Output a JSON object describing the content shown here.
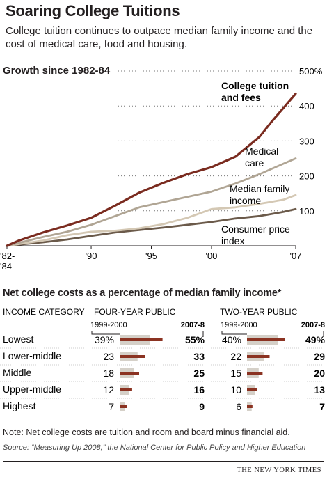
{
  "title": "Soaring College Tuitions",
  "subtitle": "College tuition continues to outpace median family income and the cost of medical care, food and housing.",
  "note": "Note: Net college costs are tuition and room and board minus financial aid.",
  "source": "Source: “Measuring Up 2008,” the National Center for Public Policy and Higher Education",
  "credit": "THE NEW YORK TIMES",
  "colors": {
    "tuition": "#7a2b1f",
    "medical": "#b0a594",
    "income": "#d4c8b4",
    "cpi": "#6b5a4a",
    "bar_light": "#d5d0c8",
    "bar_dark": "#8b3322"
  },
  "chart_data": [
    {
      "type": "line",
      "title": "Growth since 1982-84",
      "x_tick_labels": [
        "'82-\n'84",
        "'90",
        "'95",
        "'00",
        "'07"
      ],
      "x_ticks": [
        1983,
        1990,
        1995,
        2000,
        2007
      ],
      "xlim": [
        1983,
        2007
      ],
      "ylim": [
        0,
        500
      ],
      "y_ticks": [
        100,
        200,
        300,
        400,
        500
      ],
      "y_tick_labels": [
        "100",
        "200",
        "300",
        "400",
        "500%"
      ],
      "grid": "dotted horizontal",
      "series": [
        {
          "name": "College tuition and fees",
          "color_key": "tuition",
          "x": [
            1983,
            1984,
            1986,
            1988,
            1990,
            1992,
            1994,
            1996,
            1998,
            2000,
            2002,
            2004,
            2005,
            2006,
            2007
          ],
          "y": [
            0,
            15,
            38,
            58,
            80,
            115,
            152,
            180,
            205,
            225,
            255,
            312,
            355,
            395,
            435
          ]
        },
        {
          "name": "Medical care",
          "color_key": "medical",
          "x": [
            1983,
            1986,
            1988,
            1990,
            1992,
            1994,
            1996,
            1998,
            2000,
            2002,
            2004,
            2006,
            2007
          ],
          "y": [
            0,
            25,
            40,
            60,
            85,
            110,
            125,
            140,
            155,
            178,
            205,
            235,
            250
          ]
        },
        {
          "name": "Median family income",
          "color_key": "income",
          "x": [
            1983,
            1986,
            1988,
            1990,
            1992,
            1994,
            1996,
            1998,
            2000,
            2002,
            2004,
            2006,
            2007
          ],
          "y": [
            0,
            15,
            30,
            40,
            43,
            50,
            62,
            80,
            105,
            110,
            120,
            132,
            145
          ]
        },
        {
          "name": "Consumer price index",
          "color_key": "cpi",
          "x": [
            1983,
            1986,
            1988,
            1990,
            1992,
            1994,
            1996,
            1998,
            2000,
            2002,
            2004,
            2006,
            2007
          ],
          "y": [
            0,
            10,
            18,
            28,
            38,
            45,
            52,
            60,
            68,
            78,
            85,
            97,
            105
          ]
        }
      ],
      "annotations": [
        {
          "series": 0,
          "text_lines": [
            "College tuition",
            "and fees"
          ],
          "bold": true
        },
        {
          "series": 1,
          "text_lines": [
            "Medical",
            "care"
          ]
        },
        {
          "series": 2,
          "text_lines": [
            "Median family",
            "income"
          ]
        },
        {
          "series": 3,
          "text_lines": [
            "Consumer price",
            "index"
          ]
        }
      ]
    },
    {
      "type": "bar",
      "title": "Net college costs as a percentage of median family income*",
      "col_header_category": "INCOME CATEGORY",
      "col_header_four": "FOUR-YEAR PUBLIC",
      "col_header_two": "TWO-YEAR PUBLIC",
      "period_old": "1999-2000",
      "period_new": "2007-8",
      "max_value": 55,
      "categories": [
        "Lowest",
        "Lower-middle",
        "Middle",
        "Upper-middle",
        "Highest"
      ],
      "series": [
        {
          "name": "FOUR-YEAR PUBLIC 1999-2000",
          "values": [
            39,
            23,
            18,
            12,
            7
          ]
        },
        {
          "name": "FOUR-YEAR PUBLIC 2007-8",
          "values": [
            55,
            33,
            25,
            16,
            9
          ]
        },
        {
          "name": "TWO-YEAR PUBLIC 1999-2000",
          "values": [
            40,
            22,
            15,
            10,
            6
          ]
        },
        {
          "name": "TWO-YEAR PUBLIC 2007-8",
          "values": [
            49,
            29,
            20,
            13,
            7
          ]
        }
      ]
    }
  ]
}
